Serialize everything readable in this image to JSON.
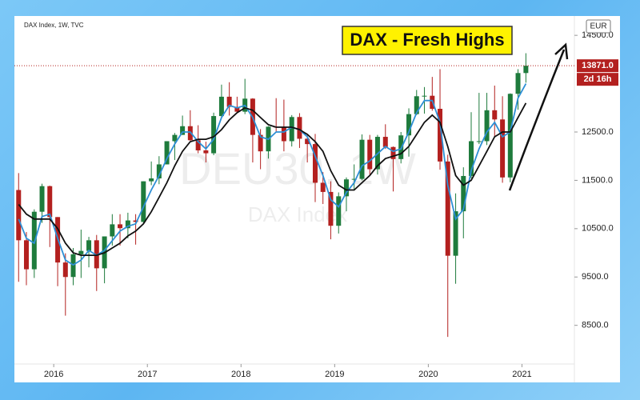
{
  "chart_data": {
    "type": "candlestick",
    "title": "DAX Index, 1W, TVC",
    "annotation": "DAX - Fresh Highs",
    "watermark": "DEU30, 1W",
    "watermark_subtitle": "DAX Index",
    "currency": "EUR",
    "countdown": "2d 16h",
    "last_price": {
      "value": 13871,
      "label": "13871.0"
    },
    "up_color": "#1e7b3c",
    "down_color": "#b3201f",
    "x": [
      2015.625,
      2015.708,
      2015.792,
      2015.875,
      2015.958,
      2016.042,
      2016.125,
      2016.208,
      2016.292,
      2016.375,
      2016.458,
      2016.542,
      2016.625,
      2016.708,
      2016.792,
      2016.875,
      2016.958,
      2017.042,
      2017.125,
      2017.208,
      2017.292,
      2017.375,
      2017.458,
      2017.542,
      2017.625,
      2017.708,
      2017.792,
      2017.875,
      2017.958,
      2018.042,
      2018.125,
      2018.208,
      2018.292,
      2018.375,
      2018.458,
      2018.542,
      2018.625,
      2018.708,
      2018.792,
      2018.875,
      2018.958,
      2019.042,
      2019.125,
      2019.208,
      2019.292,
      2019.375,
      2019.458,
      2019.542,
      2019.625,
      2019.708,
      2019.792,
      2019.875,
      2019.958,
      2020.042,
      2020.125,
      2020.208,
      2020.292,
      2020.375,
      2020.458,
      2020.542,
      2020.625,
      2020.708,
      2020.792,
      2020.875,
      2020.958,
      2021.042
    ],
    "open": [
      11300,
      10260,
      9660,
      10850,
      11380,
      10740,
      9800,
      9500,
      9970,
      10040,
      10260,
      9680,
      10340,
      10590,
      10510,
      10670,
      10640,
      11480,
      11540,
      11830,
      12310,
      12440,
      12620,
      12330,
      12120,
      12060,
      12830,
      13230,
      13020,
      12920,
      13190,
      12440,
      12100,
      12610,
      12600,
      12310,
      12810,
      12360,
      12250,
      11450,
      11260,
      10560,
      11170,
      11520,
      11530,
      12340,
      11730,
      12400,
      12190,
      11940,
      12430,
      12870,
      13240,
      13250,
      12980,
      11890,
      9940,
      10860,
      11590,
      12310,
      12310,
      12950,
      12760,
      11560,
      13290,
      13720
    ],
    "high": [
      11650,
      10430,
      10900,
      11430,
      11390,
      10740,
      9990,
      10100,
      10480,
      10330,
      10370,
      10340,
      10800,
      10800,
      10830,
      10800,
      11480,
      11890,
      12000,
      12310,
      12480,
      12840,
      12950,
      12640,
      12300,
      12900,
      13480,
      13530,
      13230,
      13600,
      13200,
      12560,
      12620,
      13200,
      13170,
      12850,
      12890,
      12430,
      12460,
      11670,
      11480,
      11250,
      11560,
      11830,
      12450,
      12440,
      12440,
      12660,
      12200,
      12500,
      12990,
      13370,
      13430,
      13640,
      13800,
      12030,
      11230,
      11770,
      12910,
      13310,
      13310,
      13460,
      13240,
      13300,
      13800,
      14130
    ],
    "low": [
      9400,
      9330,
      9480,
      10620,
      10120,
      9310,
      8700,
      9330,
      9480,
      9700,
      9210,
      9370,
      10150,
      10150,
      10300,
      10170,
      10620,
      11400,
      11420,
      11830,
      11920,
      12440,
      12320,
      12060,
      11870,
      12020,
      12800,
      12840,
      12900,
      12870,
      11870,
      11730,
      11950,
      12510,
      12100,
      12200,
      12170,
      11870,
      11050,
      11010,
      10280,
      10400,
      10860,
      11300,
      11500,
      11620,
      11620,
      12150,
      11270,
      11850,
      11990,
      12850,
      12880,
      12940,
      11720,
      8260,
      9360,
      10300,
      11540,
      12250,
      12230,
      12400,
      11450,
      11460,
      12960,
      13520
    ],
    "close": [
      10260,
      9660,
      10850,
      11380,
      10740,
      9800,
      9500,
      9970,
      10040,
      10260,
      9680,
      10340,
      10590,
      10510,
      10670,
      10640,
      11480,
      11540,
      11830,
      12310,
      12440,
      12620,
      12330,
      12120,
      12060,
      12830,
      13230,
      13020,
      12920,
      13190,
      12440,
      12100,
      12610,
      12600,
      12310,
      12810,
      12360,
      12250,
      11450,
      11260,
      10560,
      11170,
      11520,
      11530,
      12340,
      11730,
      12400,
      12190,
      11940,
      12430,
      12870,
      13240,
      13250,
      12980,
      11890,
      9940,
      10860,
      11590,
      12310,
      12310,
      12950,
      12760,
      11560,
      13290,
      13720,
      13871
    ],
    "lines": [
      {
        "color": "#2d8fd5",
        "values": [
          10700,
          10300,
          10200,
          10750,
          10800,
          10300,
          9850,
          9750,
          9850,
          10050,
          9950,
          10050,
          10250,
          10450,
          10550,
          10600,
          10950,
          11300,
          11600,
          11950,
          12250,
          12500,
          12500,
          12300,
          12150,
          12350,
          12800,
          13050,
          13000,
          13050,
          12800,
          12400,
          12350,
          12500,
          12500,
          12600,
          12550,
          12400,
          12000,
          11600,
          11100,
          10950,
          11250,
          11450,
          11800,
          11900,
          12050,
          12200,
          12100,
          12150,
          12500,
          12900,
          13150,
          13150,
          12700,
          11400,
          10700,
          10900,
          11700,
          12150,
          12500,
          12700,
          12400,
          12500,
          13200,
          13500
        ]
      },
      {
        "color": "#111111",
        "values": [
          11000,
          10800,
          10700,
          10700,
          10700,
          10500,
          10200,
          10000,
          9950,
          9950,
          9950,
          10000,
          10100,
          10200,
          10350,
          10450,
          10600,
          10850,
          11150,
          11450,
          11800,
          12100,
          12300,
          12350,
          12350,
          12400,
          12550,
          12750,
          12900,
          13000,
          12950,
          12800,
          12650,
          12600,
          12600,
          12600,
          12550,
          12450,
          12300,
          12100,
          11700,
          11400,
          11300,
          11300,
          11450,
          11600,
          11800,
          11950,
          12000,
          12050,
          12200,
          12450,
          12700,
          12850,
          12700,
          12200,
          11600,
          11400,
          11500,
          11800,
          12100,
          12400,
          12500,
          12500,
          12800,
          13100
        ]
      }
    ],
    "xlim": [
      2015.58,
      2021.56
    ],
    "ylim": [
      7700,
      14900
    ],
    "xticks": [
      2016,
      2017,
      2018,
      2019,
      2020,
      2021
    ],
    "yticks": [
      {
        "value": 8500,
        "label": "8500.0"
      },
      {
        "value": 9500,
        "label": "9500.0"
      },
      {
        "value": 10500,
        "label": "10500.0"
      },
      {
        "value": 11500,
        "label": "11500.0"
      },
      {
        "value": 12500,
        "label": "12500.0"
      },
      {
        "value": 14500,
        "label": "14500.0"
      }
    ]
  }
}
